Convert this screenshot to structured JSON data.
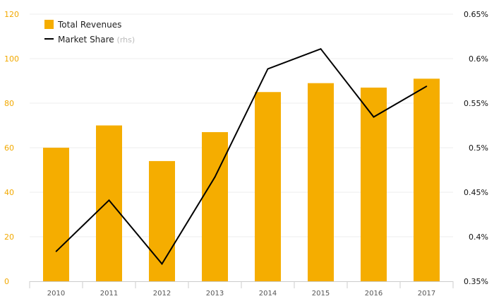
{
  "chart_data": {
    "type": "bar",
    "categories": [
      "2010",
      "2011",
      "2012",
      "2013",
      "2014",
      "2015",
      "2016",
      "2017"
    ],
    "series": [
      {
        "name": "Total Revenues",
        "type": "bar",
        "axis": "left",
        "color": "#f5ad00",
        "values": [
          60,
          70,
          54,
          67,
          85,
          89,
          87,
          91
        ]
      },
      {
        "name": "Market Share",
        "legend_suffix": "(rhs)",
        "type": "line",
        "axis": "right",
        "color": "#000000",
        "values": [
          0.3835,
          0.441,
          0.3695,
          0.467,
          0.5885,
          0.611,
          0.5345,
          0.569
        ]
      }
    ],
    "left_axis": {
      "ylim": [
        0,
        120
      ],
      "ticks": [
        0,
        20,
        40,
        60,
        80,
        100,
        120
      ],
      "tick_labels": [
        "0",
        "20",
        "40",
        "60",
        "80",
        "100",
        "120"
      ],
      "label_color": "#f2a900"
    },
    "right_axis": {
      "ylim": [
        0.35,
        0.65
      ],
      "ticks": [
        0.35,
        0.4,
        0.45,
        0.5,
        0.55,
        0.6,
        0.65
      ],
      "tick_labels": [
        "0.35%",
        "0.4%",
        "0.45%",
        "0.5%",
        "0.55%",
        "0.6%",
        "0.65%"
      ],
      "label_color": "#111111"
    },
    "grid": true,
    "legend_position": "top-left"
  }
}
